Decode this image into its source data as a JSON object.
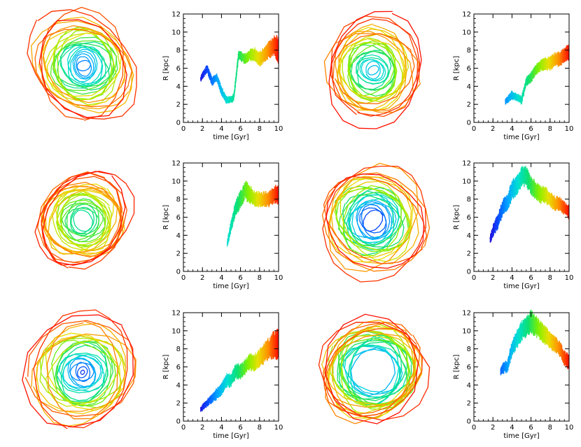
{
  "figure": {
    "orbit_panels": [
      {
        "id": "orbit-1",
        "rmin": 0.12,
        "rmax": 1.0,
        "offset": [
          0.03,
          -0.08
        ],
        "t_start": 0.2
      },
      {
        "id": "orbit-2",
        "rmin": 0.1,
        "rmax": 0.95,
        "offset": [
          0.0,
          0.0
        ],
        "t_start": 0.3
      },
      {
        "id": "orbit-3",
        "rmin": 0.2,
        "rmax": 0.93,
        "offset": [
          0.0,
          0.0
        ],
        "t_start": 0.45
      },
      {
        "id": "orbit-4",
        "rmin": 0.2,
        "rmax": 1.0,
        "offset": [
          0.0,
          0.0
        ],
        "t_start": 0.12
      },
      {
        "id": "orbit-5",
        "rmin": 0.04,
        "rmax": 1.0,
        "offset": [
          0.0,
          0.03
        ],
        "t_start": 0.1
      },
      {
        "id": "orbit-6",
        "rmin": 0.45,
        "rmax": 1.0,
        "offset": [
          0.0,
          0.0
        ],
        "t_start": 0.28
      }
    ],
    "colormap": [
      "#2a00d4",
      "#0a4cff",
      "#00a8ff",
      "#00e0d0",
      "#10e070",
      "#80f000",
      "#e8e000",
      "#ff9000",
      "#ff1000"
    ]
  },
  "chart_data": [
    {
      "id": "radius-1",
      "type": "line",
      "xlabel": "time [Gyr]",
      "ylabel": "R [kpc]",
      "xlim": [
        0,
        10
      ],
      "ylim": [
        0,
        12
      ],
      "xticks": [
        "0",
        "2",
        "4",
        "6",
        "8",
        "10"
      ],
      "yticks": [
        "0",
        "2",
        "4",
        "6",
        "8",
        "10",
        "12"
      ],
      "x": [
        1.8,
        2.5,
        3.0,
        3.5,
        4.0,
        4.5,
        5.0,
        5.3,
        5.8,
        6.5,
        7.0,
        7.5,
        8.0,
        8.5,
        9.0,
        9.5,
        10.0
      ],
      "y": [
        4.8,
        6.0,
        4.5,
        5.0,
        3.5,
        2.5,
        2.5,
        2.8,
        7.5,
        7.0,
        7.5,
        7.5,
        7.0,
        7.5,
        8.0,
        8.5,
        8.0
      ],
      "amp": [
        0.4,
        0.6,
        0.6,
        0.5,
        0.6,
        0.5,
        0.5,
        0.5,
        0.6,
        0.7,
        0.8,
        0.9,
        1.0,
        1.0,
        1.2,
        1.4,
        1.8
      ]
    },
    {
      "id": "radius-2",
      "type": "line",
      "xlabel": "time [Gyr]",
      "ylabel": "R [kpc]",
      "xlim": [
        0,
        10
      ],
      "ylim": [
        0,
        12
      ],
      "xticks": [
        "0",
        "2",
        "4",
        "6",
        "8",
        "10"
      ],
      "yticks": [
        "0",
        "2",
        "4",
        "6",
        "8",
        "10",
        "12"
      ],
      "x": [
        3.3,
        4.0,
        4.5,
        5.0,
        5.5,
        6.0,
        6.5,
        7.0,
        7.5,
        8.0,
        8.5,
        9.0,
        9.5,
        10.0
      ],
      "y": [
        2.3,
        3.0,
        2.8,
        2.5,
        4.5,
        5.0,
        5.8,
        6.3,
        6.5,
        6.5,
        7.0,
        7.0,
        7.5,
        7.8
      ],
      "amp": [
        0.4,
        0.6,
        0.5,
        0.6,
        0.6,
        0.7,
        0.7,
        0.8,
        0.8,
        0.9,
        0.9,
        1.0,
        1.0,
        1.0
      ]
    },
    {
      "id": "radius-3",
      "type": "line",
      "xlabel": "time [Gyr]",
      "ylabel": "R [kpc]",
      "xlim": [
        0,
        10
      ],
      "ylim": [
        0,
        12
      ],
      "xticks": [
        "0",
        "2",
        "4",
        "6",
        "8",
        "10"
      ],
      "yticks": [
        "0",
        "2",
        "4",
        "6",
        "8",
        "10",
        "12"
      ],
      "x": [
        4.6,
        5.0,
        5.5,
        6.0,
        6.5,
        7.0,
        7.5,
        8.0,
        8.5,
        9.0,
        9.5,
        10.0
      ],
      "y": [
        3.0,
        5.0,
        7.0,
        8.0,
        9.0,
        8.5,
        8.0,
        8.0,
        8.0,
        8.0,
        8.5,
        8.5
      ],
      "amp": [
        0.5,
        0.8,
        1.0,
        1.2,
        1.3,
        1.2,
        1.0,
        1.0,
        1.0,
        1.0,
        1.2,
        1.2
      ]
    },
    {
      "id": "radius-4",
      "type": "line",
      "xlabel": "time [Gyr]",
      "ylabel": "R [kpc]",
      "xlim": [
        0,
        10
      ],
      "ylim": [
        0,
        12
      ],
      "xticks": [
        "0",
        "2",
        "4",
        "6",
        "8",
        "10"
      ],
      "yticks": [
        "0",
        "2",
        "4",
        "6",
        "8",
        "10",
        "12"
      ],
      "x": [
        1.7,
        2.0,
        2.5,
        3.0,
        3.5,
        4.0,
        4.5,
        5.0,
        5.5,
        6.0,
        6.5,
        7.0,
        7.5,
        8.0,
        8.5,
        9.0,
        9.5,
        10.0
      ],
      "y": [
        3.5,
        4.5,
        5.5,
        7.0,
        7.5,
        9.0,
        9.5,
        10.5,
        10.5,
        9.5,
        9.0,
        8.5,
        8.5,
        8.0,
        7.5,
        7.5,
        7.0,
        6.5
      ],
      "amp": [
        0.6,
        0.8,
        1.0,
        1.1,
        1.2,
        1.3,
        1.3,
        1.3,
        1.3,
        1.2,
        1.2,
        1.1,
        1.1,
        1.0,
        1.0,
        0.9,
        0.9,
        0.9
      ]
    },
    {
      "id": "radius-5",
      "type": "line",
      "xlabel": "time [Gyr]",
      "ylabel": "R [kpc]",
      "xlim": [
        0,
        10
      ],
      "ylim": [
        0,
        12
      ],
      "xticks": [
        "0",
        "2",
        "4",
        "6",
        "8",
        "10"
      ],
      "yticks": [
        "0",
        "2",
        "4",
        "6",
        "8",
        "10",
        "12"
      ],
      "x": [
        1.8,
        2.5,
        3.0,
        3.5,
        4.0,
        4.5,
        5.0,
        5.5,
        6.0,
        6.5,
        7.0,
        7.5,
        8.0,
        8.5,
        9.0,
        9.5,
        10.0
      ],
      "y": [
        1.3,
        2.0,
        2.5,
        3.0,
        3.5,
        4.5,
        4.5,
        5.5,
        5.5,
        6.0,
        6.5,
        6.5,
        7.0,
        7.5,
        8.0,
        8.5,
        8.5
      ],
      "amp": [
        0.4,
        0.5,
        0.6,
        0.8,
        0.8,
        0.9,
        0.9,
        1.0,
        1.0,
        1.0,
        1.1,
        1.1,
        1.2,
        1.3,
        1.5,
        1.8,
        2.0
      ]
    },
    {
      "id": "radius-6",
      "type": "line",
      "xlabel": "time [Gyr]",
      "ylabel": "R [kpc]",
      "xlim": [
        0,
        10
      ],
      "ylim": [
        0,
        12
      ],
      "xticks": [
        "0",
        "2",
        "4",
        "6",
        "8",
        "10"
      ],
      "yticks": [
        "0",
        "2",
        "4",
        "6",
        "8",
        "10",
        "12"
      ],
      "x": [
        2.8,
        3.2,
        3.5,
        4.0,
        4.5,
        5.0,
        5.5,
        6.0,
        6.5,
        7.0,
        7.5,
        8.0,
        8.5,
        9.0,
        9.5,
        10.0
      ],
      "y": [
        5.5,
        6.0,
        6.0,
        8.0,
        9.0,
        10.0,
        10.5,
        11.0,
        10.5,
        10.0,
        9.5,
        9.0,
        8.5,
        8.0,
        7.0,
        6.5
      ],
      "amp": [
        0.5,
        0.8,
        0.8,
        1.0,
        1.2,
        1.3,
        1.4,
        1.5,
        1.4,
        1.3,
        1.2,
        1.2,
        1.1,
        1.0,
        1.0,
        1.0
      ]
    }
  ]
}
